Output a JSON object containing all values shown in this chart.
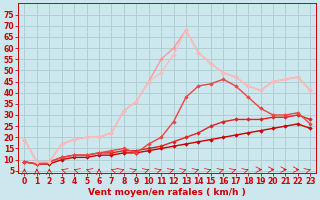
{
  "xlabel": "Vent moyen/en rafales ( km/h )",
  "background_color": "#cce8ee",
  "grid_color": "#aacccc",
  "x_values": [
    0,
    1,
    2,
    3,
    4,
    5,
    6,
    7,
    8,
    9,
    10,
    11,
    12,
    13,
    14,
    15,
    16,
    17,
    18,
    19,
    20,
    21,
    22,
    23
  ],
  "series": [
    {
      "color": "#cc0000",
      "linewidth": 1.0,
      "y": [
        9,
        8,
        8,
        10,
        11,
        11,
        12,
        12,
        13,
        13,
        14,
        15,
        16,
        17,
        18,
        19,
        20,
        21,
        22,
        23,
        24,
        25,
        26,
        24
      ]
    },
    {
      "color": "#dd2222",
      "linewidth": 1.0,
      "y": [
        9,
        8,
        9,
        11,
        12,
        12,
        13,
        13,
        14,
        14,
        15,
        16,
        18,
        20,
        22,
        25,
        27,
        28,
        28,
        28,
        29,
        29,
        30,
        28
      ]
    },
    {
      "color": "#ee4444",
      "linewidth": 1.0,
      "y": [
        9,
        8,
        9,
        11,
        12,
        12,
        13,
        14,
        15,
        13,
        17,
        20,
        27,
        38,
        43,
        44,
        46,
        43,
        38,
        33,
        30,
        30,
        31,
        26
      ]
    },
    {
      "color": "#ff9999",
      "linewidth": 1.0,
      "y": [
        19,
        9,
        9,
        17,
        19,
        20,
        20,
        22,
        32,
        36,
        45,
        55,
        60,
        68,
        58,
        53,
        49,
        47,
        43,
        41,
        45,
        46,
        47,
        41
      ]
    },
    {
      "color": "#ffbbbb",
      "linewidth": 1.0,
      "y": [
        19,
        9,
        9,
        17,
        19,
        20,
        20,
        22,
        32,
        36,
        45,
        49,
        57,
        68,
        58,
        53,
        49,
        47,
        43,
        41,
        45,
        46,
        47,
        41
      ]
    }
  ],
  "ylim": [
    4,
    80
  ],
  "xlim": [
    -0.5,
    23.5
  ],
  "yticks": [
    5,
    10,
    15,
    20,
    25,
    30,
    35,
    40,
    45,
    50,
    55,
    60,
    65,
    70,
    75
  ],
  "xticks": [
    0,
    1,
    2,
    3,
    4,
    5,
    6,
    7,
    8,
    9,
    10,
    11,
    12,
    13,
    14,
    15,
    16,
    17,
    18,
    19,
    20,
    21,
    22,
    23
  ],
  "marker": "D",
  "markersize": 1.8,
  "axis_fontsize": 6.5,
  "tick_fontsize": 5.5,
  "arrow_color": "#dd0000",
  "label_color": "#cc0000",
  "spine_color": "#cc0000"
}
